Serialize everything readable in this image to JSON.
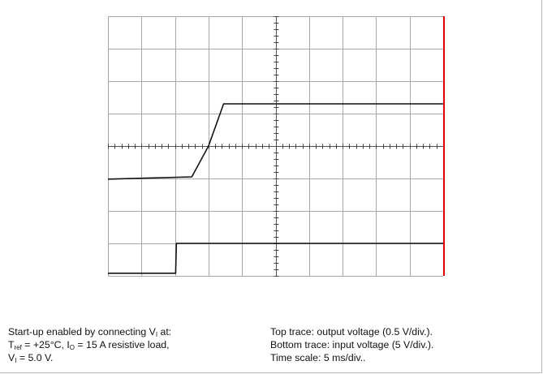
{
  "chart_data": {
    "type": "line",
    "title": "",
    "xlabel": "",
    "ylabel": "",
    "grid": true,
    "x_divisions": 10,
    "y_divisions": 8,
    "time_scale_ms_per_div": 5,
    "series": [
      {
        "x_div": [
          0,
          2.5,
          3.0,
          3.45,
          10
        ],
        "y_div": [
          2.98,
          3.05,
          4.0,
          5.3,
          5.3
        ],
        "volts_per_div": 0.5
      },
      {
        "x_div": [
          0,
          2.02,
          2.04,
          10
        ],
        "y_div": [
          0.08,
          0.08,
          1.0,
          1.0
        ],
        "volts_per_div": 5
      }
    ],
    "colors": {
      "grid": "#a8a8a8",
      "trace": "#111111",
      "right_edge": "#e00000"
    }
  },
  "caption": {
    "left": {
      "l1_text": "Start-up enabled by connecting V",
      "l1_sub": "I",
      "l1_tail": " at:",
      "l2_a": "T",
      "l2_a_sub": "ref",
      "l2_b": " = +25°C, I",
      "l2_b_sub": "O",
      "l2_c": " = 15 A resistive load,",
      "l3_a": "V",
      "l3_a_sub": "I",
      "l3_b": " = 5.0 V."
    },
    "right": {
      "line1": "Top trace: output voltage (0.5 V/div.).",
      "line2": "Bottom trace: input voltage (5 V/div.).",
      "line3": "Time scale: 5 ms/div.."
    }
  }
}
